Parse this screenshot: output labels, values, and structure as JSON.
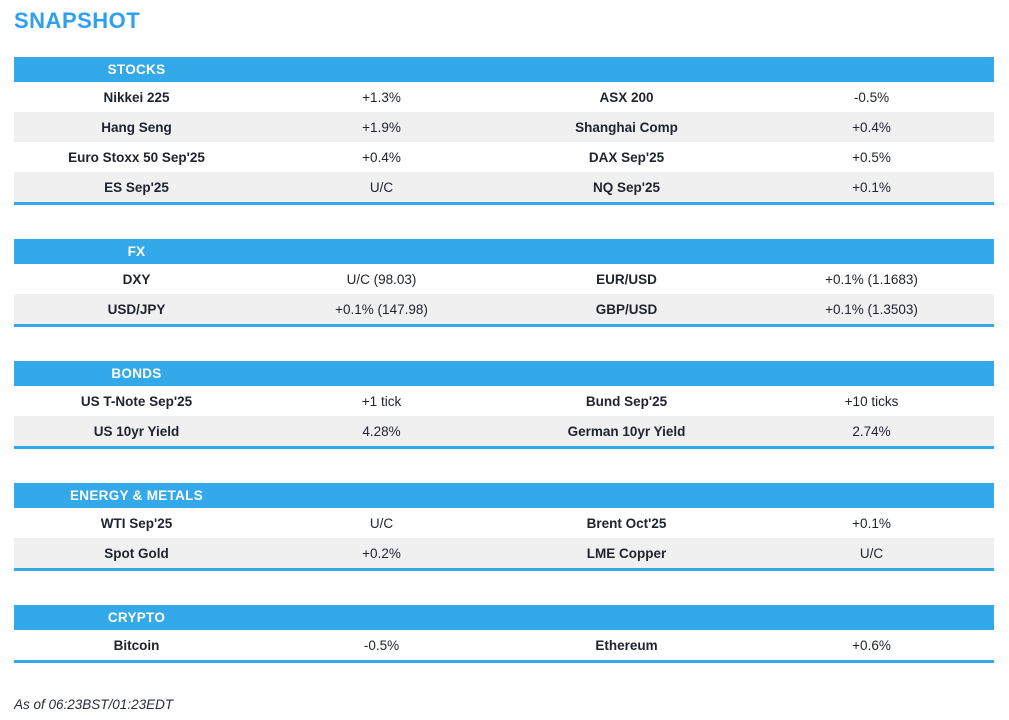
{
  "page": {
    "title": "SNAPSHOT",
    "footer": "As of 06:23BST/01:23EDT"
  },
  "colors": {
    "accent_blue": "#34a9e9",
    "title_blue": "#2e9ff2",
    "row_alt_gray": "#f0f0f0",
    "text_ink": "#20242e",
    "header_text": "#ffffff"
  },
  "sections": [
    {
      "header": "STOCKS",
      "rows": [
        [
          "Nikkei 225",
          "+1.3%",
          "ASX 200",
          "-0.5%"
        ],
        [
          "Hang Seng",
          "+1.9%",
          "Shanghai Comp",
          "+0.4%"
        ],
        [
          "Euro Stoxx 50 Sep'25",
          "+0.4%",
          "DAX Sep'25",
          "+0.5%"
        ],
        [
          "ES Sep'25",
          "U/C",
          "NQ Sep'25",
          "+0.1%"
        ]
      ]
    },
    {
      "header": "FX",
      "rows": [
        [
          "DXY",
          "U/C (98.03)",
          "EUR/USD",
          "+0.1% (1.1683)"
        ],
        [
          "USD/JPY",
          "+0.1% (147.98)",
          "GBP/USD",
          "+0.1% (1.3503)"
        ]
      ]
    },
    {
      "header": "BONDS",
      "rows": [
        [
          "US T-Note Sep'25",
          "+1 tick",
          "Bund Sep'25",
          "+10 ticks"
        ],
        [
          "US 10yr Yield",
          "4.28%",
          "German 10yr Yield",
          "2.74%"
        ]
      ]
    },
    {
      "header": "ENERGY & METALS",
      "rows": [
        [
          "WTI Sep'25",
          "U/C",
          "Brent Oct'25",
          "+0.1%"
        ],
        [
          "Spot Gold",
          "+0.2%",
          "LME Copper",
          "U/C"
        ]
      ]
    },
    {
      "header": "CRYPTO",
      "rows": [
        [
          "Bitcoin",
          "-0.5%",
          "Ethereum",
          "+0.6%"
        ]
      ]
    }
  ]
}
